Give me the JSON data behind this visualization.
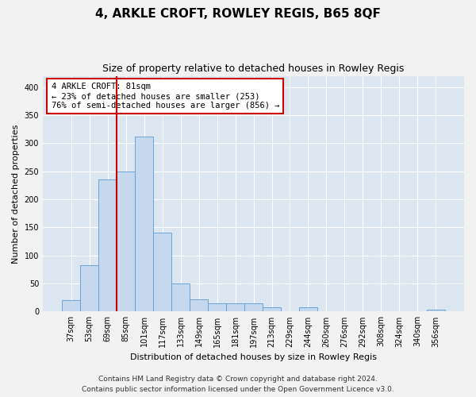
{
  "title": "4, ARKLE CROFT, ROWLEY REGIS, B65 8QF",
  "subtitle": "Size of property relative to detached houses in Rowley Regis",
  "xlabel": "Distribution of detached houses by size in Rowley Regis",
  "ylabel": "Number of detached properties",
  "categories": [
    "37sqm",
    "53sqm",
    "69sqm",
    "85sqm",
    "101sqm",
    "117sqm",
    "133sqm",
    "149sqm",
    "165sqm",
    "181sqm",
    "197sqm",
    "213sqm",
    "229sqm",
    "244sqm",
    "260sqm",
    "276sqm",
    "292sqm",
    "308sqm",
    "324sqm",
    "340sqm",
    "356sqm"
  ],
  "values": [
    20,
    82,
    235,
    250,
    312,
    140,
    50,
    22,
    15,
    15,
    15,
    8,
    0,
    8,
    0,
    0,
    0,
    0,
    0,
    0,
    3
  ],
  "bar_color": "#c5d8ee",
  "bar_edge_color": "#5b9bd5",
  "annotation_line1": "4 ARKLE CROFT: 81sqm",
  "annotation_line2": "← 23% of detached houses are smaller (253)",
  "annotation_line3": "76% of semi-detached houses are larger (856) →",
  "annotation_box_color": "#ffffff",
  "annotation_box_edge": "#cc0000",
  "vertical_line_color": "#cc0000",
  "footer1": "Contains HM Land Registry data © Crown copyright and database right 2024.",
  "footer2": "Contains public sector information licensed under the Open Government Licence v3.0.",
  "ylim": [
    0,
    420
  ],
  "yticks": [
    0,
    50,
    100,
    150,
    200,
    250,
    300,
    350,
    400
  ],
  "background_color": "#dce6f1",
  "fig_bg_color": "#f2f2f2",
  "title_fontsize": 11,
  "subtitle_fontsize": 9,
  "ylabel_fontsize": 8,
  "xlabel_fontsize": 8,
  "tick_fontsize": 7,
  "footer_fontsize": 6.5
}
